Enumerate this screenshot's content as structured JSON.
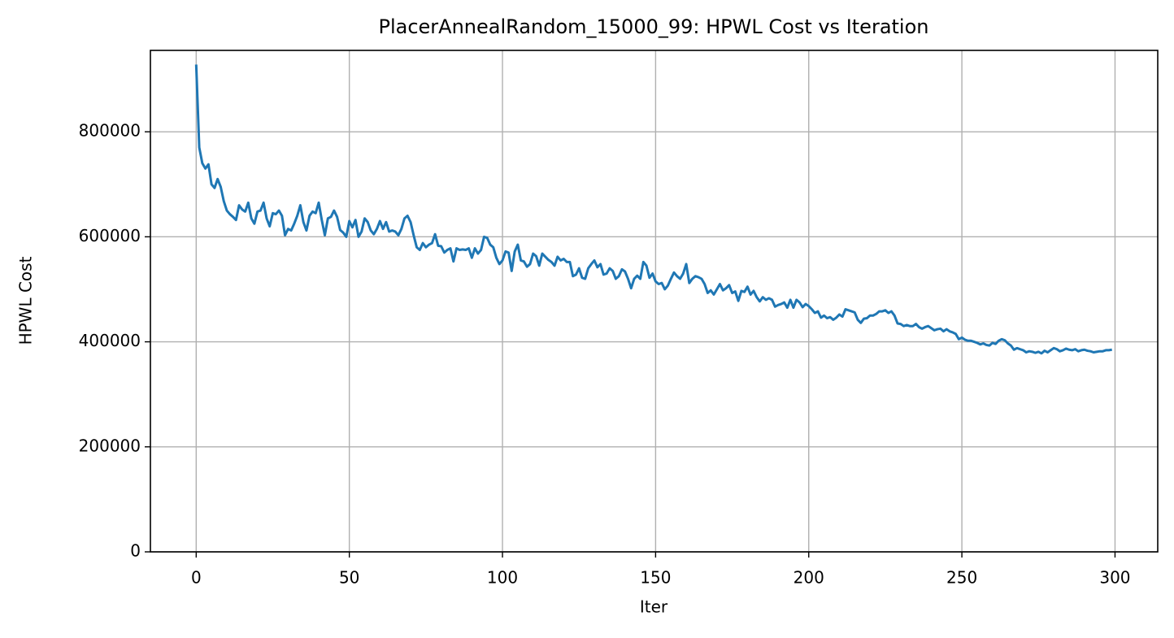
{
  "chart_data": {
    "type": "line",
    "title": "PlacerAnnealRandom_15000_99: HPWL Cost vs Iteration",
    "x_label": "Iter",
    "y_label": "HPWL Cost",
    "x": [
      0,
      1,
      2,
      3,
      4,
      5,
      6,
      7,
      8,
      9,
      10,
      11,
      12,
      13,
      14,
      15,
      16,
      17,
      18,
      19,
      20,
      21,
      22,
      23,
      24,
      25,
      26,
      27,
      28,
      29,
      30,
      31,
      32,
      33,
      34,
      35,
      36,
      37,
      38,
      39,
      40,
      41,
      42,
      43,
      44,
      45,
      46,
      47,
      48,
      49,
      50,
      51,
      52,
      53,
      54,
      55,
      56,
      57,
      58,
      59,
      60,
      61,
      62,
      63,
      64,
      65,
      66,
      67,
      68,
      69,
      70,
      71,
      72,
      73,
      74,
      75,
      76,
      77,
      78,
      79,
      80,
      81,
      82,
      83,
      84,
      85,
      86,
      87,
      88,
      89,
      90,
      91,
      92,
      93,
      94,
      95,
      96,
      97,
      98,
      99,
      100,
      101,
      102,
      103,
      104,
      105,
      106,
      107,
      108,
      109,
      110,
      111,
      112,
      113,
      114,
      115,
      116,
      117,
      118,
      119,
      120,
      121,
      122,
      123,
      124,
      125,
      126,
      127,
      128,
      129,
      130,
      131,
      132,
      133,
      134,
      135,
      136,
      137,
      138,
      139,
      140,
      141,
      142,
      143,
      144,
      145,
      146,
      147,
      148,
      149,
      150,
      151,
      152,
      153,
      154,
      155,
      156,
      157,
      158,
      159,
      160,
      161,
      162,
      163,
      164,
      165,
      166,
      167,
      168,
      169,
      170,
      171,
      172,
      173,
      174,
      175,
      176,
      177,
      178,
      179,
      180,
      181,
      182,
      183,
      184,
      185,
      186,
      187,
      188,
      189,
      190,
      191,
      192,
      193,
      194,
      195,
      196,
      197,
      198,
      199,
      200,
      201,
      202,
      203,
      204,
      205,
      206,
      207,
      208,
      209,
      210,
      211,
      212,
      213,
      214,
      215,
      216,
      217,
      218,
      219,
      220,
      221,
      222,
      223,
      224,
      225,
      226,
      227,
      228,
      229,
      230,
      231,
      232,
      233,
      234,
      235,
      236,
      237,
      238,
      239,
      240,
      241,
      242,
      243,
      244,
      245,
      246,
      247,
      248,
      249,
      250,
      251,
      252,
      253,
      254,
      255,
      256,
      257,
      258,
      259,
      260,
      261,
      262,
      263,
      264,
      265,
      266,
      267,
      268,
      269,
      270,
      271,
      272,
      273,
      274,
      275,
      276,
      277,
      278,
      279,
      280,
      281,
      282,
      283,
      284,
      285,
      286,
      287,
      288,
      289,
      290,
      291,
      292,
      293,
      294,
      295,
      296,
      297,
      298,
      299
    ],
    "series": [
      {
        "name": "HPWL Cost",
        "color": "#1f77b4",
        "values": [
          928000,
          770000,
          740000,
          730000,
          738000,
          700000,
          693000,
          710000,
          695000,
          668000,
          650000,
          643000,
          638000,
          632000,
          660000,
          652000,
          648000,
          665000,
          635000,
          625000,
          648000,
          650000,
          665000,
          635000,
          620000,
          645000,
          643000,
          650000,
          640000,
          603000,
          615000,
          612000,
          625000,
          640000,
          660000,
          628000,
          612000,
          640000,
          648000,
          645000,
          665000,
          632000,
          603000,
          635000,
          638000,
          650000,
          638000,
          613000,
          608000,
          600000,
          630000,
          618000,
          632000,
          600000,
          610000,
          635000,
          628000,
          612000,
          605000,
          615000,
          630000,
          615000,
          628000,
          610000,
          612000,
          610000,
          603000,
          615000,
          635000,
          640000,
          628000,
          603000,
          580000,
          575000,
          588000,
          580000,
          585000,
          588000,
          605000,
          583000,
          582000,
          570000,
          575000,
          578000,
          553000,
          578000,
          575000,
          576000,
          575000,
          578000,
          560000,
          578000,
          568000,
          575000,
          600000,
          598000,
          585000,
          580000,
          560000,
          548000,
          555000,
          572000,
          570000,
          535000,
          572000,
          585000,
          555000,
          553000,
          543000,
          548000,
          568000,
          563000,
          545000,
          568000,
          562000,
          556000,
          552000,
          545000,
          562000,
          555000,
          558000,
          552000,
          552000,
          525000,
          528000,
          540000,
          522000,
          520000,
          540000,
          548000,
          555000,
          542000,
          548000,
          528000,
          530000,
          540000,
          535000,
          520000,
          525000,
          538000,
          534000,
          520000,
          502000,
          520000,
          526000,
          520000,
          552000,
          545000,
          522000,
          530000,
          515000,
          510000,
          512000,
          500000,
          507000,
          520000,
          532000,
          525000,
          520000,
          530000,
          548000,
          512000,
          520000,
          525000,
          523000,
          520000,
          510000,
          493000,
          498000,
          490000,
          500000,
          510000,
          498000,
          502000,
          508000,
          493000,
          496000,
          478000,
          497000,
          495000,
          505000,
          490000,
          497000,
          485000,
          477000,
          485000,
          480000,
          483000,
          480000,
          467000,
          470000,
          472000,
          475000,
          465000,
          480000,
          465000,
          480000,
          475000,
          466000,
          472000,
          468000,
          462000,
          455000,
          458000,
          446000,
          450000,
          445000,
          447000,
          442000,
          446000,
          452000,
          448000,
          462000,
          460000,
          458000,
          456000,
          442000,
          436000,
          444000,
          445000,
          450000,
          450000,
          453000,
          458000,
          458000,
          460000,
          455000,
          458000,
          450000,
          435000,
          434000,
          430000,
          432000,
          430000,
          430000,
          434000,
          428000,
          425000,
          428000,
          430000,
          426000,
          422000,
          424000,
          425000,
          420000,
          424000,
          420000,
          418000,
          415000,
          405000,
          408000,
          404000,
          402000,
          402000,
          400000,
          398000,
          395000,
          397000,
          394000,
          393000,
          398000,
          396000,
          402000,
          405000,
          403000,
          397000,
          393000,
          385000,
          388000,
          386000,
          384000,
          380000,
          382000,
          381000,
          379000,
          381000,
          378000,
          383000,
          380000,
          384000,
          388000,
          386000,
          382000,
          384000,
          387000,
          385000,
          384000,
          386000,
          382000,
          384000,
          385000,
          383000,
          382000,
          380000,
          381000,
          382000,
          382000,
          384000,
          384000,
          385000
        ]
      }
    ],
    "xlim": [
      -14.95,
      313.95
    ],
    "xticks": [
      0,
      50,
      100,
      150,
      200,
      250,
      300
    ],
    "ylim": [
      0,
      955000
    ],
    "yticks": [
      0,
      200000,
      400000,
      600000,
      800000
    ],
    "grid": true
  }
}
